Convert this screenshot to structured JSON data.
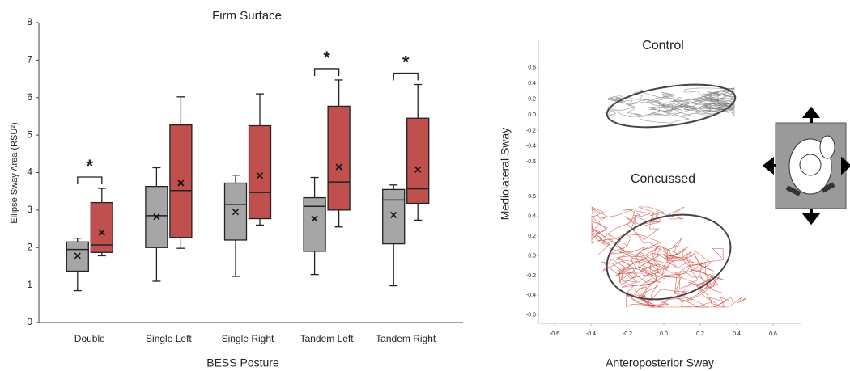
{
  "chart_data": [
    {
      "type": "box",
      "title": "Firm Surface",
      "x_label": "BESS Posture",
      "y_label": "Ellipse Sway Area (RSU²)",
      "categories": [
        "Double",
        "Single Left",
        "Single Right",
        "Tandem Left",
        "Tandem Right"
      ],
      "ylim": [
        0,
        8
      ],
      "yticks": [
        0,
        1,
        2,
        3,
        4,
        5,
        6,
        7,
        8
      ],
      "series": [
        {
          "color": "#a6a6a6",
          "boxes": [
            {
              "min": 0.85,
              "q1": 1.37,
              "median": 1.95,
              "q3": 2.15,
              "max": 2.25,
              "mean": 1.78
            },
            {
              "min": 1.1,
              "q1": 2.0,
              "median": 2.85,
              "q3": 3.63,
              "max": 4.13,
              "mean": 2.82
            },
            {
              "min": 1.23,
              "q1": 2.2,
              "median": 3.15,
              "q3": 3.72,
              "max": 3.93,
              "mean": 2.95
            },
            {
              "min": 1.28,
              "q1": 1.9,
              "median": 3.1,
              "q3": 3.33,
              "max": 3.87,
              "mean": 2.77
            },
            {
              "min": 0.98,
              "q1": 2.1,
              "median": 3.27,
              "q3": 3.55,
              "max": 3.67,
              "mean": 2.87
            }
          ]
        },
        {
          "color": "#c0504d",
          "boxes": [
            {
              "min": 1.78,
              "q1": 1.87,
              "median": 2.07,
              "q3": 3.2,
              "max": 3.58,
              "mean": 2.4
            },
            {
              "min": 1.98,
              "q1": 2.27,
              "median": 3.52,
              "q3": 5.27,
              "max": 6.02,
              "mean": 3.72
            },
            {
              "min": 2.6,
              "q1": 2.77,
              "median": 3.47,
              "q3": 5.25,
              "max": 6.1,
              "mean": 3.92
            },
            {
              "min": 2.55,
              "q1": 3.0,
              "median": 3.75,
              "q3": 5.77,
              "max": 6.47,
              "mean": 4.15
            },
            {
              "min": 2.73,
              "q1": 3.18,
              "median": 3.57,
              "q3": 5.45,
              "max": 6.35,
              "mean": 4.08
            }
          ]
        }
      ],
      "significant": [
        true,
        false,
        false,
        true,
        true
      ],
      "significance_label": "*"
    },
    {
      "type": "trajectory",
      "x_label": "Anteroposterior Sway",
      "y_label": "Mediolateral Sway",
      "xlim": [
        -0.7,
        0.7
      ],
      "xticks": [
        -0.6,
        -0.4,
        -0.2,
        {
          "value": 0,
          "label": "0.0"
        },
        0.2,
        0.4,
        0.6
      ],
      "panels": [
        {
          "title": "Control",
          "color": "#808080",
          "ylim": [
            -0.7,
            0.7
          ],
          "yticks": [
            0.6,
            0.4,
            0.2,
            {
              "value": 0,
              "label": "0.0"
            },
            -0.2,
            -0.4,
            -0.6
          ]
        },
        {
          "title": "Concussed",
          "color": "#d0453a",
          "ylim": [
            -0.7,
            0.7
          ],
          "yticks": [
            0.6,
            0.4,
            0.2,
            {
              "value": 0,
              "label": "0.0"
            },
            -0.2,
            -0.4,
            -0.6
          ]
        }
      ]
    }
  ]
}
